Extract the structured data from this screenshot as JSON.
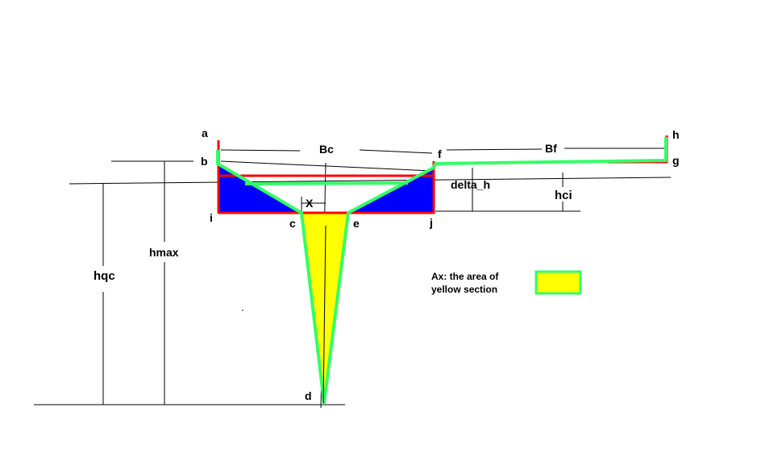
{
  "colors": {
    "background": "#ffffff",
    "outline": "#ff0000",
    "green": "#33ff66",
    "blue": "#0000ff",
    "yellow": "#ffff00",
    "dim": "#000000"
  },
  "points": {
    "a": "a",
    "b": "b",
    "c": "c",
    "d": "d",
    "e": "e",
    "f": "f",
    "g": "g",
    "h": "h",
    "i": "i",
    "j": "j"
  },
  "dimensions": {
    "Bc": "Bc",
    "Bf": "Bf",
    "X": "X",
    "delta_h": "delta_h",
    "hci": "hci",
    "hmax": "hmax",
    "hqc": "hqc"
  },
  "legend": {
    "line1": "Ax: the area of",
    "line2": "yellow section"
  }
}
